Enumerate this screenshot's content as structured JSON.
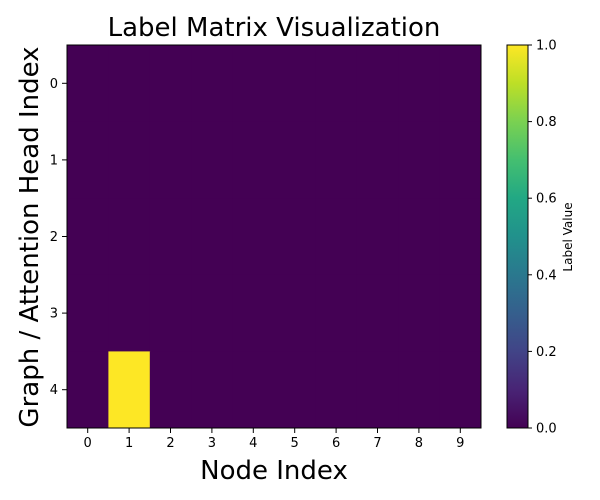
{
  "chart_data": {
    "type": "heatmap",
    "title": "Label Matrix Visualization",
    "xlabel": "Node Index",
    "ylabel": "Graph / Attention Head Index",
    "x_categories": [
      "0",
      "1",
      "2",
      "3",
      "4",
      "5",
      "6",
      "7",
      "8",
      "9"
    ],
    "y_categories": [
      "0",
      "1",
      "2",
      "3",
      "4"
    ],
    "values": [
      [
        0,
        0,
        0,
        0,
        0,
        0,
        0,
        0,
        0,
        0
      ],
      [
        0,
        0,
        0,
        0,
        0,
        0,
        0,
        0,
        0,
        0
      ],
      [
        0,
        0,
        0,
        0,
        0,
        0,
        0,
        0,
        0,
        0
      ],
      [
        0,
        0,
        0,
        0,
        0,
        0,
        0,
        0,
        0,
        0
      ],
      [
        0,
        1,
        0,
        0,
        0,
        0,
        0,
        0,
        0,
        0
      ]
    ],
    "colorbar": {
      "label": "Label Value",
      "range": [
        0,
        1
      ],
      "ticks": [
        "0.0",
        "0.2",
        "0.4",
        "0.6",
        "0.8",
        "1.0"
      ]
    },
    "colormap": "viridis",
    "colors": {
      "low": "#440154",
      "high": "#fde725"
    },
    "grid": false
  }
}
